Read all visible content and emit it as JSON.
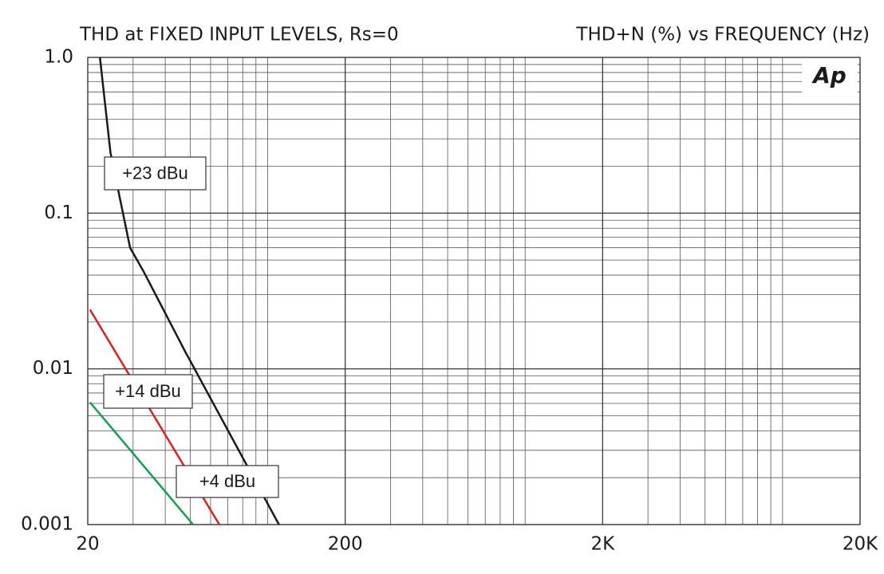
{
  "chart_data": {
    "type": "line",
    "title": "THD at FIXED INPUT LEVELS, Rs=0",
    "subtitle": "THD+N (%) vs FREQUENCY (Hz)",
    "logo": "Ap",
    "xlog": true,
    "ylog": true,
    "grid": true,
    "xlim": [
      20,
      20000
    ],
    "ylim": [
      0.001,
      1
    ],
    "xticks": [
      20,
      200,
      {
        "value": 2000,
        "label": "2K"
      },
      {
        "value": 20000,
        "label": "20K"
      }
    ],
    "yticks": [
      {
        "value": 1,
        "label": "1.0"
      },
      0.1,
      0.01,
      0.001
    ],
    "series": [
      {
        "name": "+23 dBu",
        "color": "#1a1a1a",
        "x": [
          22.3,
          24.5,
          29.2,
          33,
          47.7,
          110.6
        ],
        "values": [
          1.0,
          0.245,
          0.06,
          0.042,
          0.013,
          0.001
        ]
      },
      {
        "name": "+14 dBu",
        "color": "#e02020",
        "x": [
          20.4,
          64.9
        ],
        "values": [
          0.024,
          0.001
        ]
      },
      {
        "name": "+4 dBu",
        "color": "#10a050",
        "x": [
          20.4,
          51.3
        ],
        "values": [
          0.0061,
          0.001
        ]
      }
    ]
  }
}
